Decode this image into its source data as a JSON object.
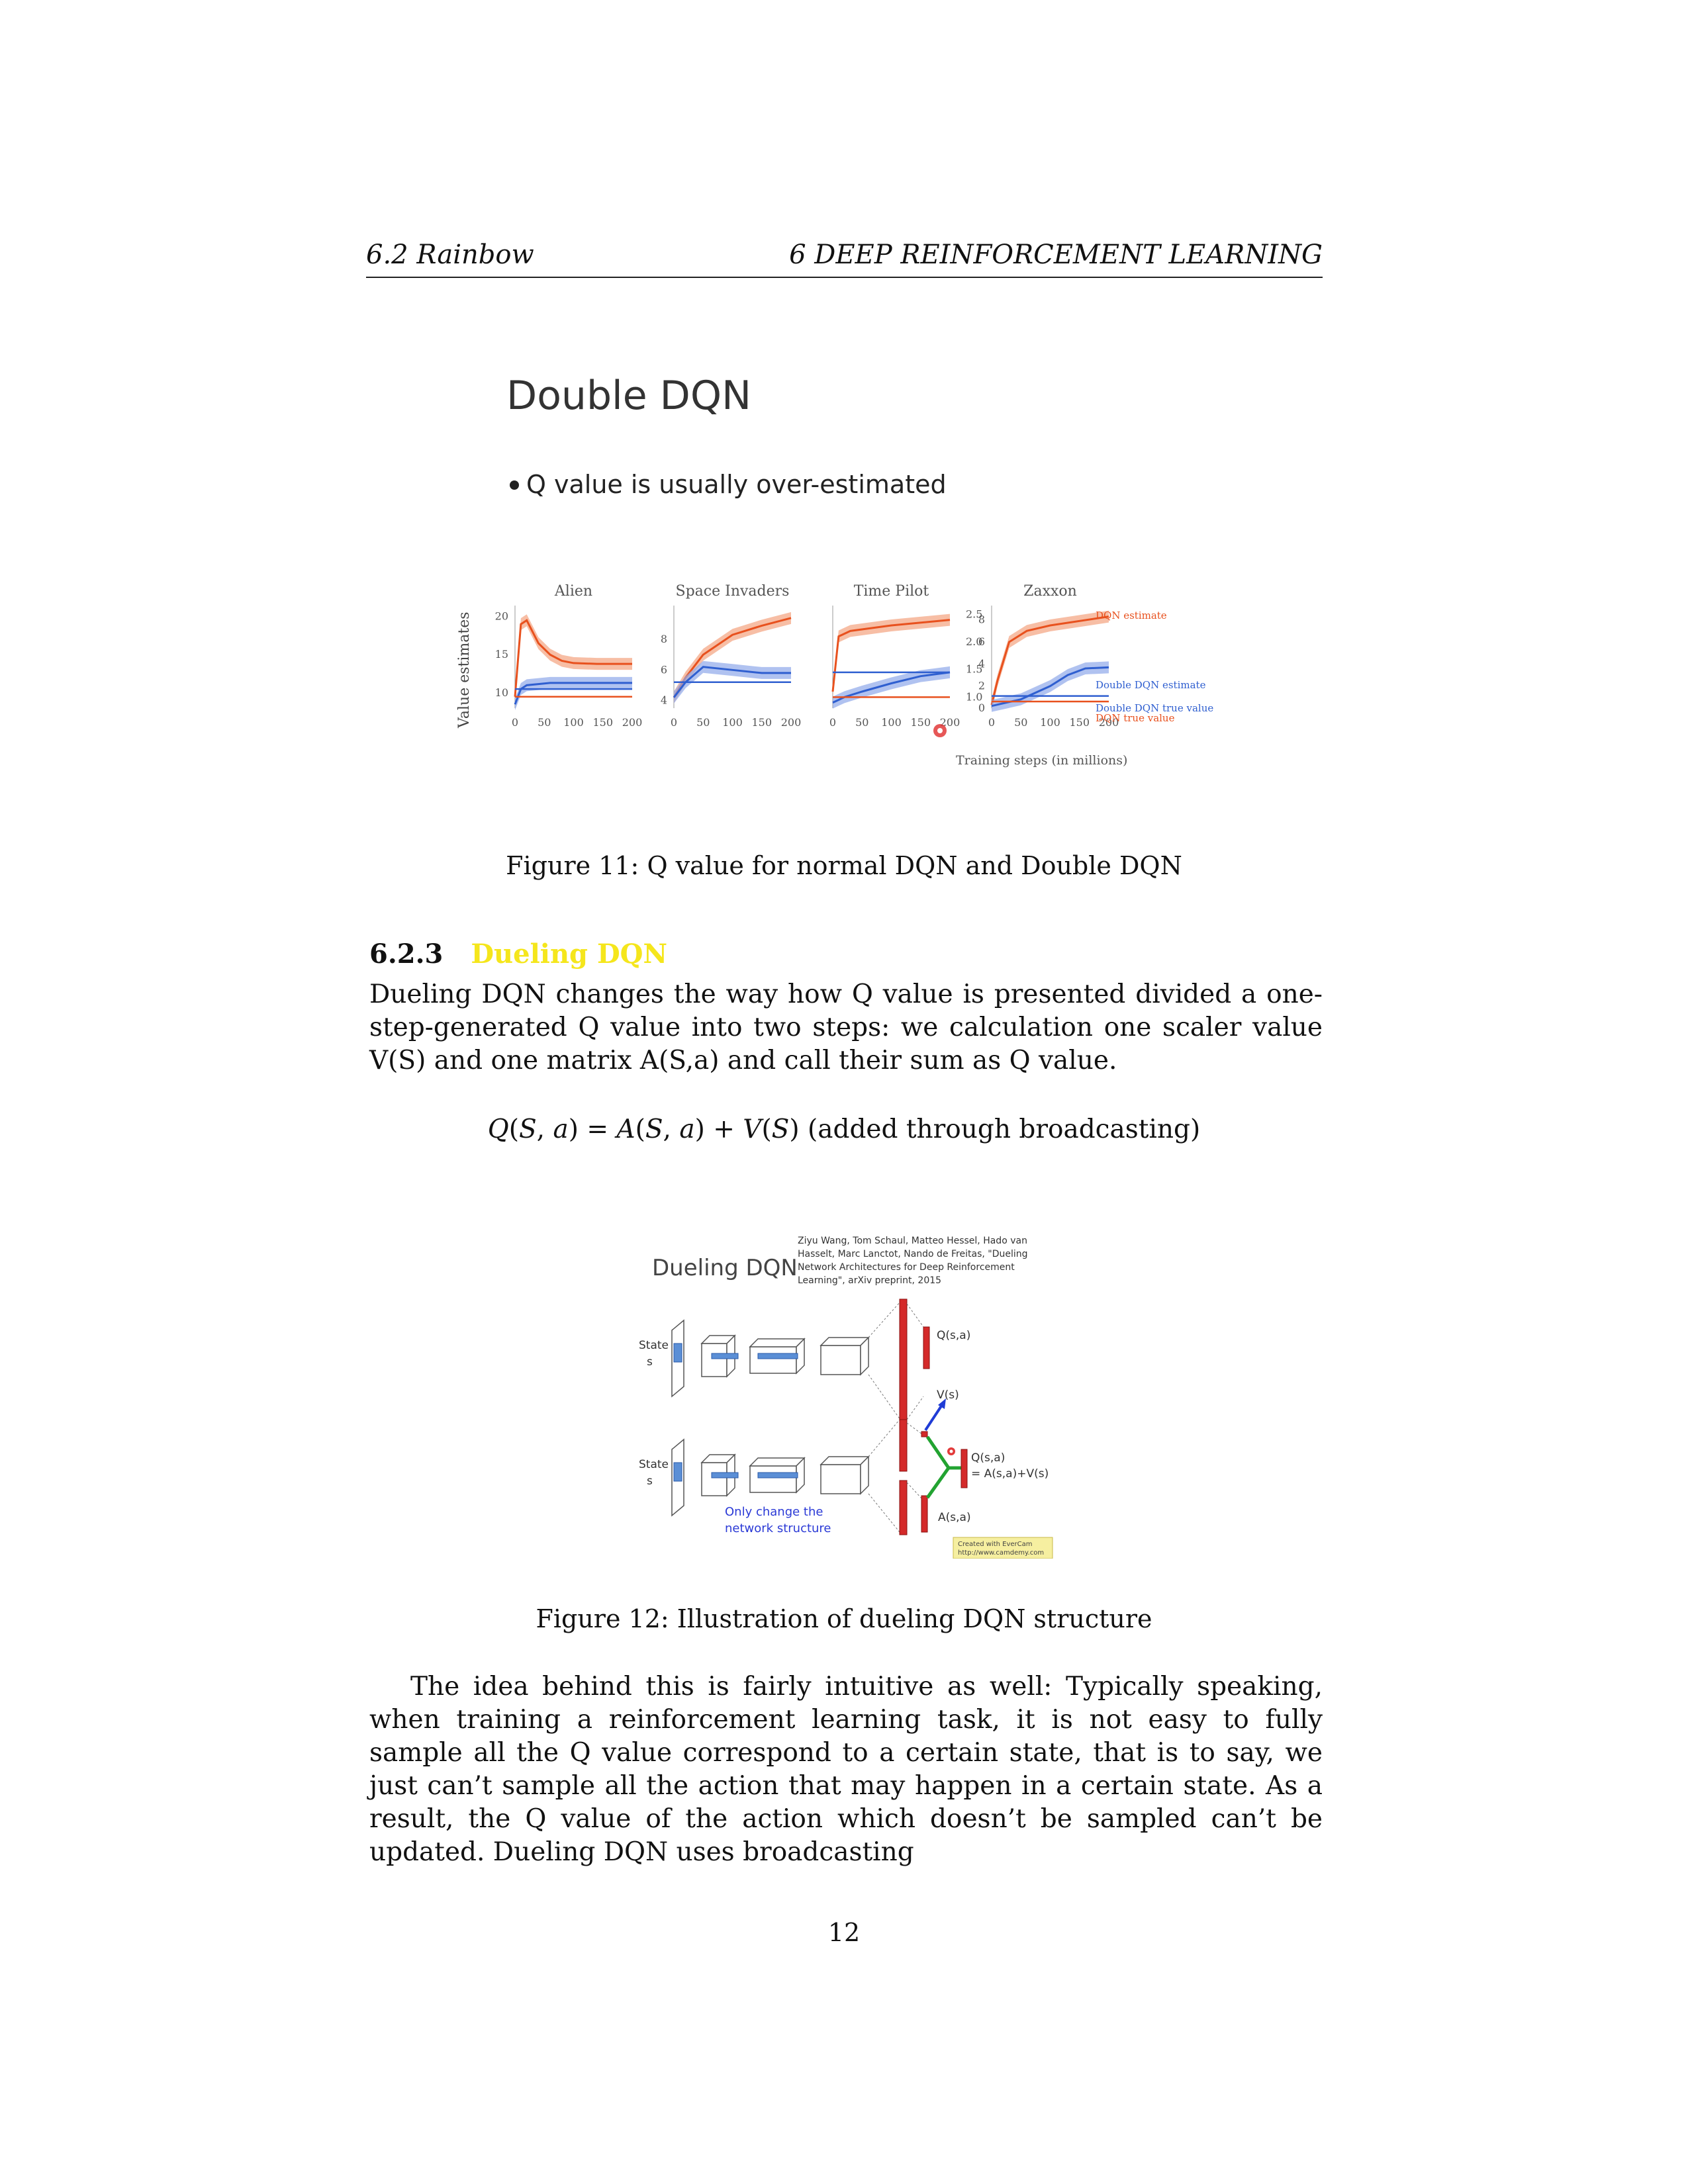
{
  "header": {
    "left": "6.2   Rainbow",
    "right": "6   DEEP REINFORCEMENT LEARNING"
  },
  "slide1": {
    "title": "Double DQN",
    "bullet": "Q value is usually over-estimated",
    "ylabel": "Value estimates",
    "xlabel": "Training steps (in millions)",
    "legend": {
      "dqn_estimate": "DQN estimate",
      "ddqn_estimate": "Double DQN estimate",
      "ddqn_true": "Double DQN true value",
      "dqn_true": "DQN true value"
    },
    "colors": {
      "dqn": "#e8511e",
      "ddqn": "#2f5fd0",
      "dqn_band": "#f3a27f",
      "ddqn_band": "#8fa8ea"
    }
  },
  "chart_data": {
    "type": "line",
    "ylabel": "Value estimates",
    "xlabel": "Training steps (in millions)",
    "panels": [
      {
        "title": "Alien",
        "x_ticks": [
          "0",
          "50",
          "100",
          "150",
          "200"
        ],
        "y_ticks": [
          "20",
          "15",
          "10"
        ],
        "ylim": [
          8,
          21
        ],
        "series": [
          {
            "name": "DQN estimate",
            "x": [
              0,
              10,
              20,
              40,
              60,
              80,
              100,
              140,
              200
            ],
            "y": [
              9.5,
              19,
              19.5,
              16.5,
              15,
              14.2,
              13.9,
              13.8,
              13.8
            ]
          },
          {
            "name": "Double DQN estimate",
            "x": [
              0,
              10,
              20,
              60,
              100,
              200
            ],
            "y": [
              8.5,
              10.5,
              11,
              11.3,
              11.3,
              11.3
            ]
          },
          {
            "name": "DQN true value",
            "x": [
              0,
              200
            ],
            "y": [
              9.5,
              9.5
            ]
          },
          {
            "name": "Double DQN true value",
            "x": [
              0,
              200
            ],
            "y": [
              10.5,
              10.5
            ]
          }
        ]
      },
      {
        "title": "Space Invaders",
        "x_ticks": [
          "0",
          "50",
          "100",
          "150",
          "200"
        ],
        "y_ticks": [
          "8",
          "6",
          "4"
        ],
        "ylim": [
          3.5,
          10
        ],
        "series": [
          {
            "name": "DQN estimate",
            "x": [
              0,
              20,
              50,
              100,
              150,
              200
            ],
            "y": [
              4.2,
              5.5,
              7,
              8.3,
              8.9,
              9.4
            ]
          },
          {
            "name": "Double DQN estimate",
            "x": [
              0,
              20,
              50,
              100,
              150,
              200
            ],
            "y": [
              4.2,
              5.2,
              6.2,
              6,
              5.8,
              5.8
            ]
          },
          {
            "name": "DQN true value",
            "x": [
              0,
              200
            ],
            "y": [
              5.2,
              5.2
            ]
          },
          {
            "name": "Double DQN true value",
            "x": [
              0,
              200
            ],
            "y": [
              5.2,
              5.2
            ]
          }
        ]
      },
      {
        "title": "Time Pilot",
        "x_ticks": [
          "0",
          "50",
          "100",
          "150",
          "200"
        ],
        "y_ticks": [
          "2.5",
          "2.0",
          "1.5",
          "1.0"
        ],
        "ylim": [
          0.8,
          2.6
        ],
        "series": [
          {
            "name": "DQN estimate",
            "x": [
              0,
              10,
              30,
              100,
              200
            ],
            "y": [
              1.1,
              2.1,
              2.2,
              2.3,
              2.4
            ]
          },
          {
            "name": "Double DQN estimate",
            "x": [
              0,
              20,
              50,
              100,
              150,
              200
            ],
            "y": [
              0.9,
              1.0,
              1.1,
              1.25,
              1.38,
              1.45
            ]
          },
          {
            "name": "DQN true value",
            "x": [
              0,
              200
            ],
            "y": [
              1.0,
              1.0
            ]
          },
          {
            "name": "Double DQN true value",
            "x": [
              0,
              200
            ],
            "y": [
              1.45,
              1.45
            ]
          }
        ]
      },
      {
        "title": "Zaxxon",
        "x_ticks": [
          "0",
          "50",
          "100",
          "150",
          "200"
        ],
        "y_ticks": [
          "8",
          "6",
          "4",
          "2",
          "0"
        ],
        "ylim": [
          0,
          9
        ],
        "series": [
          {
            "name": "DQN estimate",
            "x": [
              0,
              10,
              30,
              60,
              100,
              200
            ],
            "y": [
              0.3,
              2.5,
              6,
              7,
              7.5,
              8.3
            ]
          },
          {
            "name": "Double DQN estimate",
            "x": [
              0,
              50,
              100,
              130,
              160,
              200
            ],
            "y": [
              0.2,
              0.8,
              2.0,
              3.0,
              3.6,
              3.7
            ]
          },
          {
            "name": "DQN true value",
            "x": [
              0,
              200
            ],
            "y": [
              0.6,
              0.6
            ]
          },
          {
            "name": "Double DQN true value",
            "x": [
              0,
              200
            ],
            "y": [
              1.1,
              1.1
            ]
          }
        ]
      }
    ]
  },
  "figure11": {
    "caption": "Figure 11: Q value for normal DQN and Double DQN"
  },
  "section": {
    "number": "6.2.3",
    "title": "Dueling DQN"
  },
  "para1": "Dueling DQN changes the way how Q value is presented divided a one-step-generated Q value into two steps: we calculation one scaler value V(S) and one matrix A(S,a) and call their sum as Q value.",
  "equation": {
    "text": "(added through broadcasting)"
  },
  "slide2": {
    "title": "Dueling DQN",
    "citation": [
      "Ziyu Wang, Tom Schaul, Matteo Hessel, Hado van",
      "Hasselt, Marc Lanctot, Nando de Freitas, \"Dueling",
      "Network Architectures for Deep Reinforcement",
      "Learning\", arXiv preprint, 2015"
    ],
    "state_label": "State",
    "state_var": "s",
    "q_top": "Q(s,a)",
    "v_label": "V(s)",
    "q_bottom_1": "Q(s,a)",
    "q_bottom_2": "= A(s,a)+V(s)",
    "a_label": "A(s,a)",
    "note_1": "Only change the",
    "note_2": "network structure",
    "watermark_1": "Created with EverCam",
    "watermark_2": "http://www.camdemy.com"
  },
  "figure12": {
    "caption": "Figure 12: Illustration of dueling DQN structure"
  },
  "para2": "The idea behind this is fairly intuitive as well: Typically speaking, when training a reinforcement learning task, it is not easy to fully sample all the Q value correspond to a certain state, that is to say, we just can’t sample all the action that may happen in a certain state. As a result, the Q value of the action which doesn’t be sampled can’t be updated. Dueling DQN uses broadcasting",
  "page_number": "12"
}
